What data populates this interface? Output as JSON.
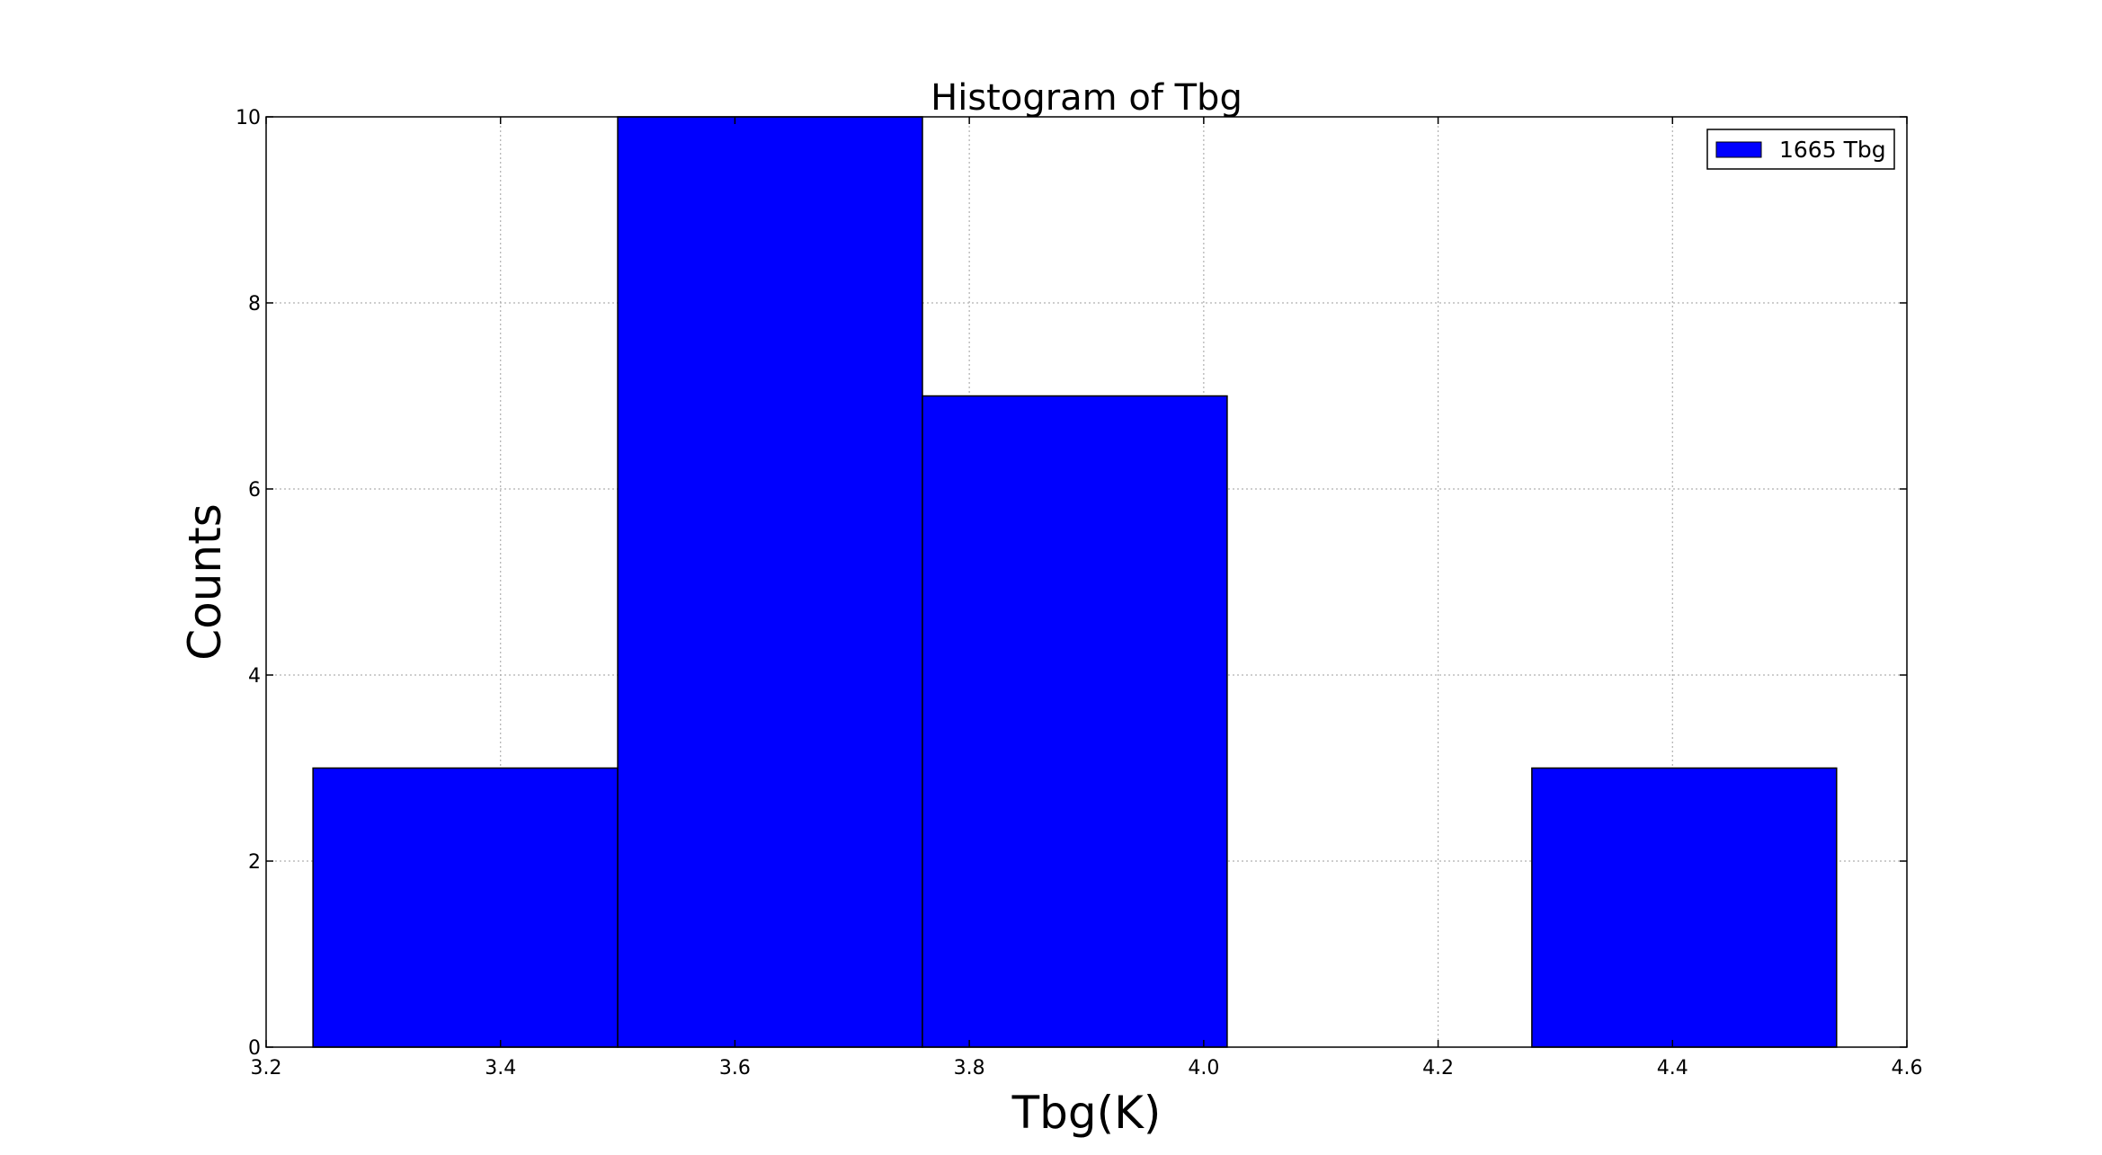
{
  "chart_data": {
    "type": "bar",
    "title": "Histogram of Tbg",
    "xlabel": "Tbg(K)",
    "ylabel": "Counts",
    "xlim": [
      3.2,
      4.6
    ],
    "ylim": [
      0,
      10
    ],
    "xticks": [
      "3.2",
      "3.4",
      "3.6",
      "3.8",
      "4.0",
      "4.2",
      "4.4",
      "4.6"
    ],
    "yticks": [
      "0",
      "2",
      "4",
      "6",
      "8",
      "10"
    ],
    "grid": true,
    "legend_position": "top-right",
    "bar_color": "#0000ff",
    "edge_color": "#000000",
    "series": [
      {
        "name": "1665 Tbg",
        "bins": [
          {
            "x0": 3.24,
            "x1": 3.5,
            "count": 3
          },
          {
            "x0": 3.5,
            "x1": 3.76,
            "count": 10
          },
          {
            "x0": 3.76,
            "x1": 4.02,
            "count": 7
          },
          {
            "x0": 4.02,
            "x1": 4.28,
            "count": 0
          },
          {
            "x0": 4.28,
            "x1": 4.54,
            "count": 3
          }
        ]
      }
    ]
  }
}
